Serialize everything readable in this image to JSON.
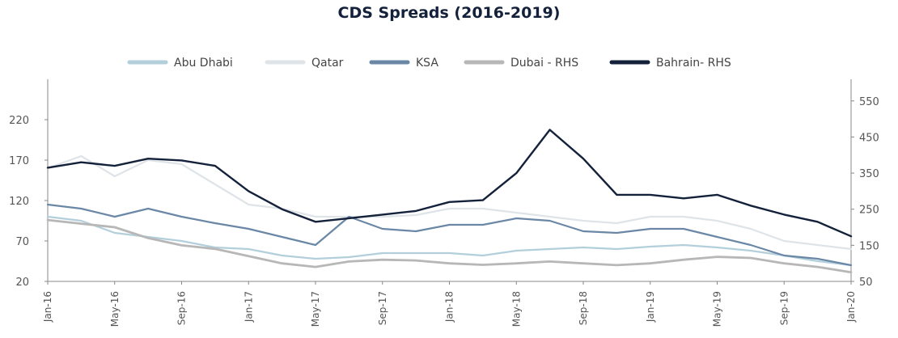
{
  "chart_data": {
    "type": "line",
    "title": "CDS Spreads (2016-2019)",
    "legend_position": "top-center",
    "grid": false,
    "left_axis": {
      "range": [
        20,
        270
      ],
      "ticks": [
        "20",
        "70",
        "120",
        "170",
        "220"
      ]
    },
    "right_axis": {
      "range": [
        50,
        610
      ],
      "ticks": [
        "50",
        "150",
        "250",
        "350",
        "450",
        "550"
      ]
    },
    "x_labels": [
      "Jan-16",
      "May-16",
      "Sep-16",
      "Jan-17",
      "May-17",
      "Sep-17",
      "Jan-18",
      "May-18",
      "Sep-18",
      "Jan-19",
      "May-19",
      "Sep-19",
      "Jan-20"
    ],
    "x": [
      "Jan-16",
      "Mar-16",
      "May-16",
      "Jul-16",
      "Sep-16",
      "Nov-16",
      "Jan-17",
      "Mar-17",
      "May-17",
      "Jul-17",
      "Sep-17",
      "Nov-17",
      "Jan-18",
      "Mar-18",
      "May-18",
      "Jul-18",
      "Sep-18",
      "Nov-18",
      "Jan-19",
      "Mar-19",
      "May-19",
      "Jul-19",
      "Sep-19",
      "Nov-19",
      "Jan-20"
    ],
    "series": [
      {
        "name": "Abu Dhabi",
        "axis": "left",
        "color": "#b3cfdb",
        "width": 2.2,
        "values": [
          100,
          95,
          80,
          75,
          70,
          62,
          60,
          52,
          48,
          50,
          55,
          55,
          55,
          52,
          58,
          60,
          62,
          60,
          63,
          65,
          62,
          58,
          52,
          45,
          40
        ]
      },
      {
        "name": "Qatar",
        "axis": "left",
        "color": "#dfe4e8",
        "width": 2.2,
        "values": [
          160,
          175,
          150,
          170,
          165,
          140,
          115,
          110,
          100,
          100,
          100,
          102,
          110,
          110,
          105,
          100,
          95,
          92,
          100,
          100,
          95,
          85,
          70,
          65,
          60
        ]
      },
      {
        "name": "KSA",
        "axis": "left",
        "color": "#6a87a6",
        "width": 2.2,
        "values": [
          115,
          110,
          100,
          110,
          100,
          92,
          85,
          75,
          65,
          100,
          85,
          82,
          90,
          90,
          98,
          95,
          82,
          80,
          85,
          85,
          75,
          65,
          52,
          48,
          40
        ]
      },
      {
        "name": "Dubai - RHS",
        "axis": "right",
        "color": "#b7b7b7",
        "width": 2.8,
        "values": [
          220,
          210,
          200,
          170,
          150,
          140,
          120,
          100,
          90,
          105,
          110,
          108,
          100,
          96,
          100,
          105,
          100,
          95,
          100,
          110,
          118,
          115,
          100,
          90,
          75
        ]
      },
      {
        "name": "Bahrain- RHS",
        "axis": "right",
        "color": "#14213a",
        "width": 2.4,
        "values": [
          365,
          380,
          370,
          390,
          385,
          370,
          300,
          250,
          215,
          225,
          235,
          245,
          270,
          275,
          350,
          470,
          390,
          290,
          290,
          280,
          290,
          260,
          235,
          215,
          175
        ]
      }
    ]
  }
}
